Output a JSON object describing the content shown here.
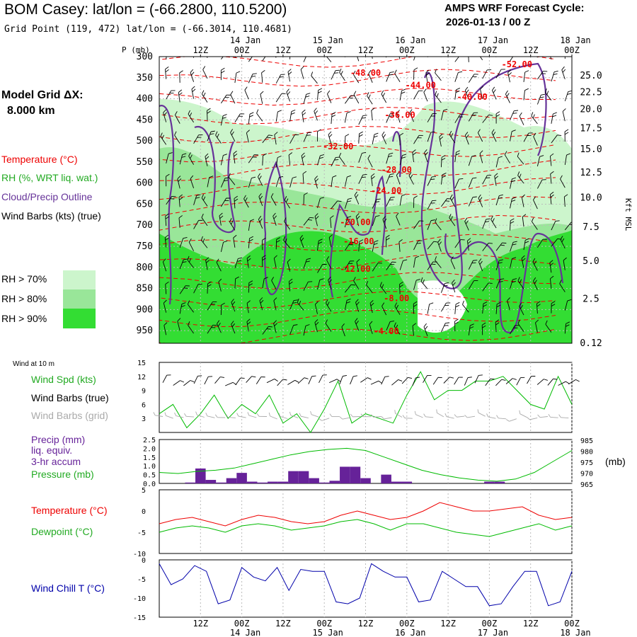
{
  "header": {
    "title": "BOM Casey:  lat/lon = (-66.2800, 110.5200)",
    "subtitle": "Grid Point (119, 472) lat/lon = (-66.3014, 110.4681)",
    "cycle_line1": "AMPS WRF Forecast Cycle:",
    "cycle_line2": "2026-01-13 / 00  Z"
  },
  "model_grid": {
    "label": "Model Grid ΔX:",
    "value": "8.000 km"
  },
  "colors": {
    "temperature": "#ee0000",
    "rh": "#22aa22",
    "cloud": "#663399",
    "wind": "#000000",
    "grid_barbs": "#aaaaaa",
    "precip": "#662299",
    "pressure": "#00bb00",
    "dewpoint": "#00bb00",
    "windchill": "#0000aa",
    "rh70": "#ccf5cc",
    "rh80": "#99e699",
    "rh90": "#33dd33"
  },
  "legend_main": {
    "temperature": "Temperature (°C)",
    "rh": "RH (%, WRT liq. wat.)",
    "cloud": "Cloud/Precip Outline",
    "wind": "Wind Barbs (kts) (true)",
    "rh_levels": [
      "RH > 70%",
      "RH > 80%",
      "RH > 90%"
    ]
  },
  "legend_panels": {
    "wind_title": "Wind at 10 m",
    "wind_spd": "Wind Spd (kts)",
    "wind_barbs_true": "Wind Barbs (true)",
    "wind_barbs_grid": "Wind Barbs (grid)",
    "precip_line1": "Precip (mm)",
    "precip_line2": "liq. equiv.",
    "precip_line3": "3-hr accum",
    "pressure": "Pressure (mb)",
    "temperature": "Temperature (°C)",
    "dewpoint": "Dewpoint (°C)",
    "windchill": "Wind Chill T (°C)",
    "pressure_unit": "(mb)"
  },
  "chart_data": {
    "type": "line",
    "time_axis": {
      "hours": [
        0,
        6,
        12,
        18,
        24,
        30,
        36,
        42,
        48,
        54,
        60,
        66,
        72,
        78,
        84,
        90,
        96,
        102,
        108,
        114,
        120
      ],
      "tick_labels_top": [
        "12Z",
        "00Z",
        "12Z",
        "00Z",
        "12Z",
        "00Z",
        "12Z",
        "00Z",
        "12Z",
        "00Z"
      ],
      "tick_hours": [
        12,
        24,
        36,
        48,
        60,
        72,
        84,
        96,
        108,
        120
      ],
      "day_labels": [
        "14 Jan",
        "15 Jan",
        "16 Jan",
        "17 Jan",
        "18 Jan"
      ],
      "day_hours": [
        24,
        48,
        72,
        96,
        120
      ],
      "range_hours": [
        0,
        120
      ]
    },
    "cross_section": {
      "y_title": "P (mb)",
      "pressure_levels": [
        300,
        350,
        400,
        450,
        500,
        550,
        600,
        650,
        700,
        750,
        800,
        850,
        900,
        950
      ],
      "p_range": [
        300,
        980
      ],
      "height_labels": [
        "25.0",
        "22.5",
        "20.0",
        "17.5",
        "15.0",
        "12.5",
        "10.0",
        "7.5",
        "5.0",
        "2.5",
        "0.12"
      ],
      "height_label_pressures": [
        345,
        385,
        425,
        470,
        520,
        575,
        635,
        705,
        785,
        875,
        980
      ],
      "height_axis_title": "Kft MSL",
      "temperature_contours": [
        {
          "label": "-52.00",
          "hour": 104,
          "p": 325
        },
        {
          "label": "-48.00",
          "hour": 60,
          "p": 345
        },
        {
          "label": "-44.00",
          "hour": 76,
          "p": 375
        },
        {
          "label": "-40.00",
          "hour": 91,
          "p": 402
        },
        {
          "label": "-36.00",
          "hour": 70,
          "p": 445
        },
        {
          "label": "-32.00",
          "hour": 52,
          "p": 520
        },
        {
          "label": "-28.00",
          "hour": 69,
          "p": 575
        },
        {
          "label": "-24.00",
          "hour": 66,
          "p": 625
        },
        {
          "label": "-20.00",
          "hour": 57,
          "p": 700
        },
        {
          "label": "-16.00",
          "hour": 58,
          "p": 745
        },
        {
          "label": "-12.00",
          "hour": 57,
          "p": 810
        },
        {
          "label": "-8.00",
          "hour": 69,
          "p": 880
        },
        {
          "label": "-4.00",
          "hour": 66,
          "p": 958
        }
      ]
    },
    "wind_speed": {
      "y_range": [
        0,
        15
      ],
      "y_ticks": [
        3,
        6,
        9,
        12,
        15
      ],
      "values": [
        4,
        6,
        1,
        4,
        8,
        3,
        6,
        4,
        8,
        2,
        4,
        0,
        5,
        11,
        2,
        4,
        3,
        2,
        8,
        13,
        7,
        9,
        9,
        11,
        11,
        12,
        9,
        6,
        5,
        12,
        6
      ]
    },
    "precip_pressure": {
      "precip_y_range": [
        0,
        2.5
      ],
      "precip_ticks": [
        "0.0",
        "0.5",
        "1.0",
        "1.5",
        "2.0",
        "2.5"
      ],
      "precip_hours": [
        3,
        6,
        9,
        12,
        15,
        18,
        21,
        24,
        27,
        30,
        33,
        36,
        39,
        42,
        45,
        48,
        51,
        54,
        57,
        60,
        63,
        66,
        69,
        72,
        75,
        78,
        81,
        84,
        87,
        90,
        93,
        96,
        99,
        102,
        105,
        108,
        111,
        114,
        117
      ],
      "precip_values": [
        0,
        0,
        0.05,
        0.85,
        0.2,
        0.05,
        0.3,
        0.6,
        0.1,
        0.05,
        0.1,
        0.1,
        0.7,
        0.7,
        0.3,
        0.05,
        0.15,
        0.95,
        0.95,
        0.3,
        0,
        0.5,
        0.1,
        0.1,
        0,
        0,
        0,
        0,
        0,
        0,
        0,
        0.1,
        0.1,
        0,
        0,
        0,
        0,
        0,
        0
      ],
      "pressure_y_range": [
        965,
        985
      ],
      "pressure_ticks": [
        "965",
        "970",
        "975",
        "980",
        "985"
      ],
      "pressure_values": [
        970,
        969.5,
        970.5,
        971,
        972,
        974,
        976,
        978,
        979.5,
        980.5,
        981,
        980,
        977,
        974,
        971,
        969,
        967.5,
        966.5,
        966,
        967,
        970,
        975,
        980
      ]
    },
    "temp_dewpoint": {
      "y_range": [
        -10,
        5
      ],
      "y_ticks": [
        "-10",
        "-5",
        "0",
        "5"
      ],
      "temperature": [
        -3,
        -2,
        -1.5,
        -2.5,
        -3.5,
        -2,
        -1,
        -1.5,
        -2.5,
        -3,
        -2.5,
        -1,
        0,
        -1,
        -2,
        -1.5,
        0,
        2,
        1,
        0,
        0,
        0.5,
        1,
        -1,
        -2,
        -1.5
      ],
      "dewpoint": [
        -5,
        -4,
        -3.5,
        -4,
        -5,
        -3.5,
        -3,
        -3.5,
        -4.5,
        -4,
        -3.5,
        -2.5,
        -2,
        -3,
        -4.5,
        -3,
        -3,
        -4,
        -5,
        -5.5,
        -6,
        -5,
        -4,
        -3,
        -4.5,
        -3.5
      ]
    },
    "wind_chill": {
      "y_range": [
        -15,
        0
      ],
      "y_ticks": [
        "-15",
        "-10",
        "-5",
        "0"
      ],
      "values": [
        -1,
        -6.5,
        -5,
        -1.5,
        -3,
        -11.5,
        -10.5,
        -2,
        -4.5,
        -5.5,
        -2,
        -8,
        -2.5,
        -3,
        -3,
        -11,
        -11.5,
        -10,
        -1,
        -3,
        -4.5,
        -4.5,
        -11,
        -10.5,
        -3,
        -5,
        -7,
        -7,
        -12,
        -11.5,
        -7,
        -3,
        -3,
        -12,
        -11,
        -3
      ]
    }
  }
}
